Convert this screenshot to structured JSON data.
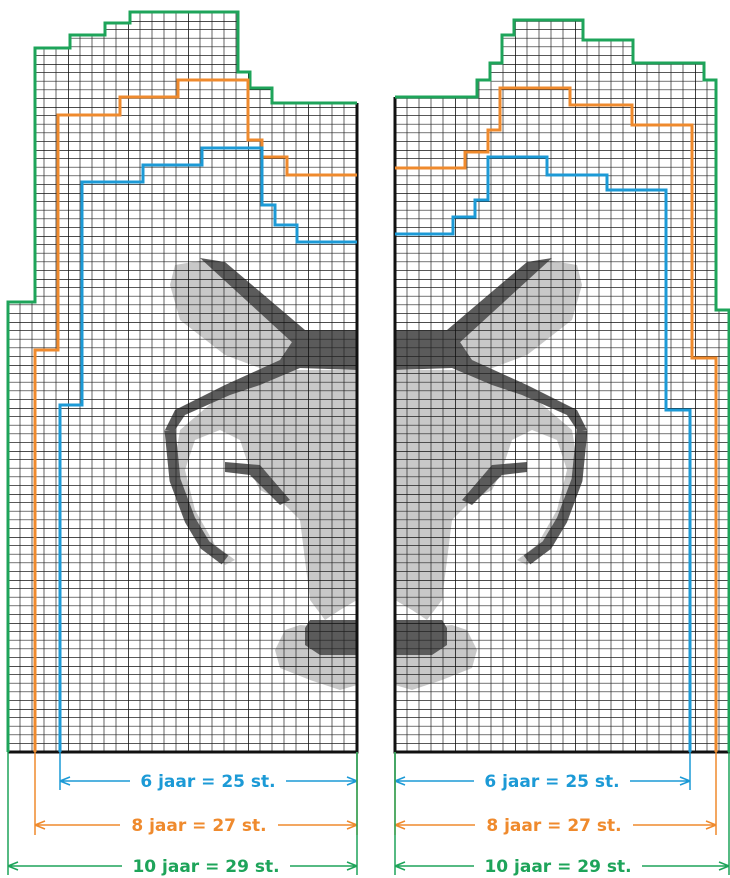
{
  "dimensions": {
    "left": [
      "6 jaar = 25 st.",
      "8 jaar = 27 st.",
      "10 jaar = 29 st."
    ],
    "right": [
      "6 jaar = 25 st.",
      "8 jaar = 27 st.",
      "10 jaar = 29 st."
    ]
  }
}
